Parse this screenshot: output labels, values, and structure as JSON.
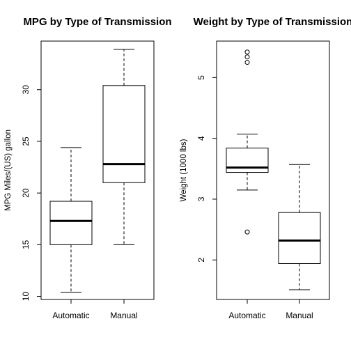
{
  "chart_data": [
    {
      "type": "boxplot",
      "title": "MPG by Type of Transmission",
      "xlabel": "",
      "ylabel": "MPG Miles/(US) gallon",
      "ylim": [
        9.7,
        34.7
      ],
      "yticks": [
        10,
        15,
        20,
        25,
        30
      ],
      "categories": [
        "Automatic",
        "Manual"
      ],
      "boxes": [
        {
          "name": "Automatic",
          "whisker_low": 10.4,
          "q1": 15.0,
          "median": 17.3,
          "q3": 19.2,
          "whisker_high": 24.4,
          "outliers": []
        },
        {
          "name": "Manual",
          "whisker_low": 15.0,
          "q1": 21.0,
          "median": 22.8,
          "q3": 30.4,
          "whisker_high": 33.9,
          "outliers": []
        }
      ]
    },
    {
      "type": "boxplot",
      "title": "Weight by Type of Transmission",
      "xlabel": "",
      "ylabel": "Weight (1000 lbs)",
      "ylim": [
        1.35,
        5.6
      ],
      "yticks": [
        2,
        3,
        4,
        5
      ],
      "categories": [
        "Automatic",
        "Manual"
      ],
      "boxes": [
        {
          "name": "Automatic",
          "whisker_low": 3.15,
          "q1": 3.44,
          "median": 3.52,
          "q3": 3.84,
          "whisker_high": 4.07,
          "outliers": [
            5.25,
            5.34,
            5.42,
            2.46
          ]
        },
        {
          "name": "Manual",
          "whisker_low": 1.51,
          "q1": 1.94,
          "median": 2.32,
          "q3": 2.78,
          "whisker_high": 3.57,
          "outliers": []
        }
      ]
    }
  ]
}
